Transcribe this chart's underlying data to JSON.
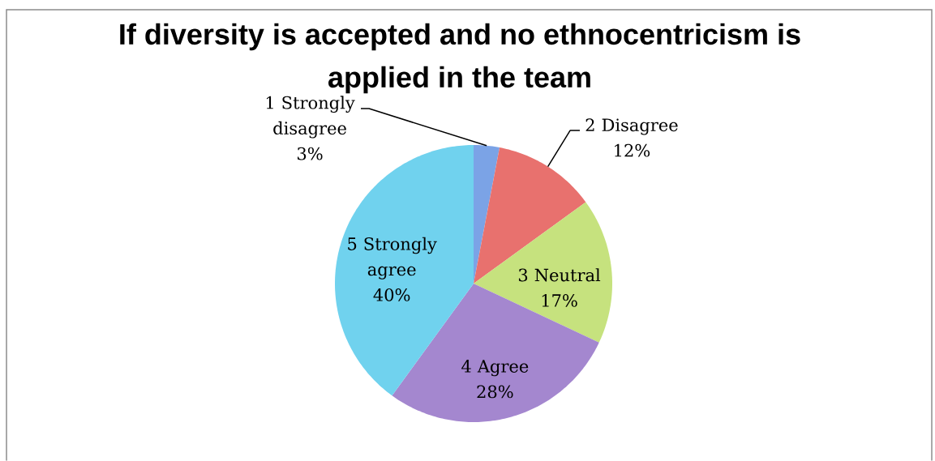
{
  "chart_data": {
    "type": "pie",
    "title": "If diversity is accepted and no ethnocentricism is applied in the team",
    "categories": [
      "1 Strongly disagree",
      "2 Disagree",
      "3 Neutral",
      "4 Agree",
      "5 Strongly agree"
    ],
    "values": [
      3,
      12,
      17,
      28,
      40
    ],
    "colors": [
      "#7BA3E6",
      "#E8716E",
      "#C6E27E",
      "#A487CF",
      "#70D2EE"
    ],
    "value_labels": [
      "3%",
      "12%",
      "17%",
      "28%",
      "40%"
    ]
  }
}
